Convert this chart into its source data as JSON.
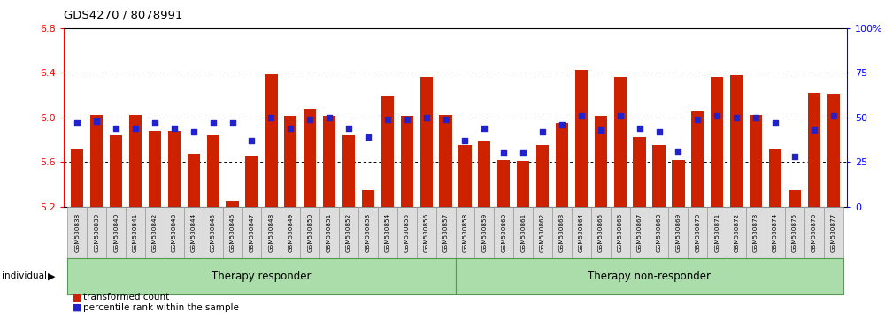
{
  "title": "GDS4270 / 8078991",
  "samples": [
    "GSM530838",
    "GSM530839",
    "GSM530840",
    "GSM530841",
    "GSM530842",
    "GSM530843",
    "GSM530844",
    "GSM530845",
    "GSM530846",
    "GSM530847",
    "GSM530848",
    "GSM530849",
    "GSM530850",
    "GSM530851",
    "GSM530852",
    "GSM530853",
    "GSM530854",
    "GSM530855",
    "GSM530856",
    "GSM530857",
    "GSM530858",
    "GSM530859",
    "GSM530860",
    "GSM530861",
    "GSM530862",
    "GSM530863",
    "GSM530864",
    "GSM530865",
    "GSM530866",
    "GSM530867",
    "GSM530868",
    "GSM530869",
    "GSM530870",
    "GSM530871",
    "GSM530872",
    "GSM530873",
    "GSM530874",
    "GSM530875",
    "GSM530876",
    "GSM530877"
  ],
  "bar_values": [
    5.72,
    6.02,
    5.84,
    6.02,
    5.88,
    5.88,
    5.67,
    5.84,
    5.25,
    5.66,
    6.39,
    6.01,
    6.08,
    6.01,
    5.84,
    5.35,
    6.19,
    6.01,
    6.36,
    6.02,
    5.75,
    5.78,
    5.62,
    5.61,
    5.75,
    5.95,
    6.43,
    6.01,
    6.36,
    5.82,
    5.75,
    5.62,
    6.05,
    6.36,
    6.38,
    6.02,
    5.72,
    5.35,
    6.22,
    6.21
  ],
  "percentile_values": [
    47,
    48,
    44,
    44,
    47,
    44,
    42,
    47,
    47,
    37,
    50,
    44,
    49,
    50,
    44,
    39,
    49,
    49,
    50,
    49,
    37,
    44,
    30,
    30,
    42,
    46,
    51,
    43,
    51,
    44,
    42,
    31,
    49,
    51,
    50,
    50,
    47,
    28,
    43,
    51
  ],
  "group_labels": [
    "Therapy responder",
    "Therapy non-responder"
  ],
  "group_split": 20,
  "n_total": 40,
  "ylim_left": [
    5.2,
    6.8
  ],
  "ylim_right": [
    0,
    100
  ],
  "yticks_left": [
    5.2,
    5.6,
    6.0,
    6.4,
    6.8
  ],
  "yticks_right": [
    0,
    25,
    50,
    75,
    100
  ],
  "bar_color": "#cc2200",
  "blue_color": "#2222cc",
  "bar_width": 0.65,
  "plot_bg": "#ffffff"
}
